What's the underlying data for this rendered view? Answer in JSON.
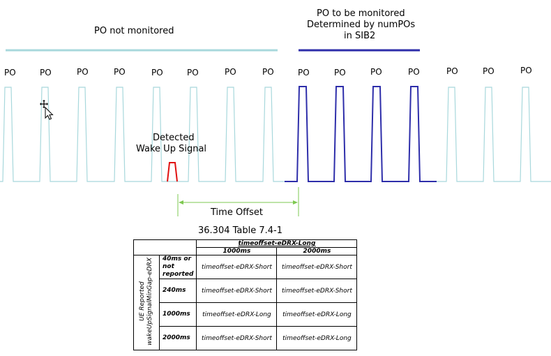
{
  "labels": {
    "not_monitored": "PO not monitored",
    "monitored_line1": "PO to be monitored",
    "monitored_line2": "Determined by numPOs",
    "monitored_line3": "in SIB2",
    "detected_line1": "Detected",
    "detected_line2": "Wake Up Signal",
    "time_offset": "Time Offset",
    "po": "PO"
  },
  "colors": {
    "light_line": "#a8d8dc",
    "dark_line": "#2e2eaa",
    "signal": "#e01010",
    "arrow": "#7ec850"
  },
  "table": {
    "title": "36.304 Table 7.4-1",
    "col_group": "timeoffset-eDRX-Long",
    "col_headers": [
      "1000ms",
      "2000ms"
    ],
    "row_group_line1": "UE Reported",
    "row_group_line2": "wakeUpSignalMinGap-eDRX",
    "rows": [
      {
        "label": "40ms or not reported",
        "values": [
          "timeoffset-eDRX-Short",
          "timeoffset-eDRX-Short"
        ]
      },
      {
        "label": "240ms",
        "values": [
          "timeoffset-eDRX-Short",
          "timeoffset-eDRX-Short"
        ]
      },
      {
        "label": "1000ms",
        "values": [
          "timeoffset-eDRX-Long",
          "timeoffset-eDRX-Long"
        ]
      },
      {
        "label": "2000ms",
        "values": [
          "timeoffset-eDRX-Short",
          "timeoffset-eDRX-Long"
        ]
      }
    ]
  }
}
